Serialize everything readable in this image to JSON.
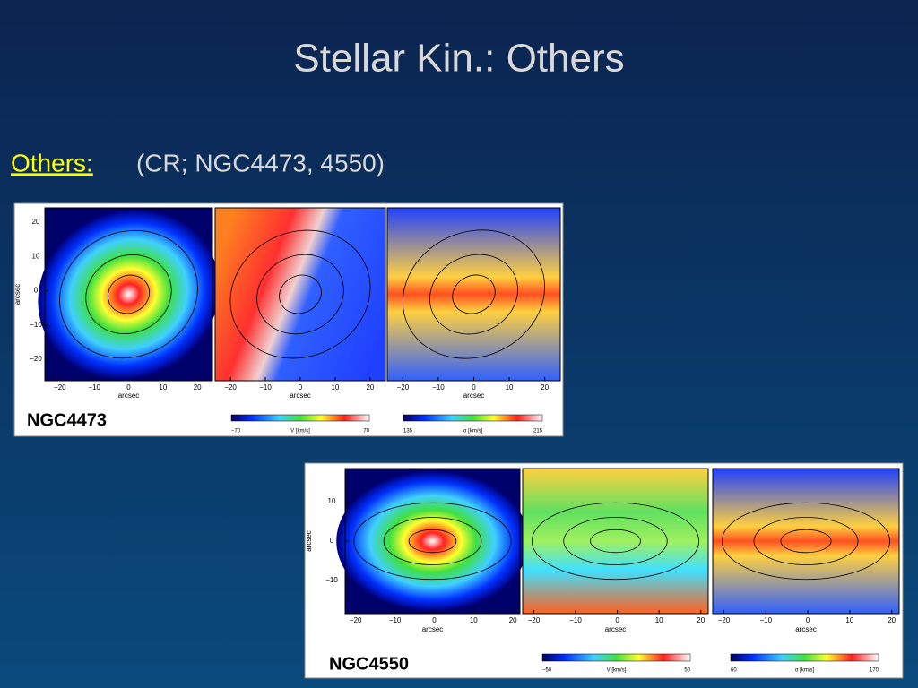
{
  "title": "Stellar Kin.: Others",
  "intro": {
    "label": "Others:",
    "text": "(CR; NGC4473, 4550)"
  },
  "figures": [
    {
      "name": "NGC4473",
      "x_ticks": [
        "−20",
        "−10",
        "0",
        "10",
        "20"
      ],
      "y_ticks": [
        "20",
        "10",
        "0",
        "−10",
        "−20"
      ],
      "axis_label": "arcsec",
      "colorbars": [
        {
          "min": "−70",
          "label": "V [km/s]",
          "max": "70"
        },
        {
          "min": "135",
          "label": "σ [km/s]",
          "max": "215"
        }
      ]
    },
    {
      "name": "NGC4550",
      "x_ticks": [
        "−20",
        "−10",
        "0",
        "10",
        "20"
      ],
      "y_ticks": [
        "10",
        "0",
        "−10"
      ],
      "axis_label": "arcsec",
      "colorbars": [
        {
          "min": "−50",
          "label": "V [km/s]",
          "max": "50"
        },
        {
          "min": "60",
          "label": "σ [km/s]",
          "max": "170"
        }
      ]
    }
  ]
}
